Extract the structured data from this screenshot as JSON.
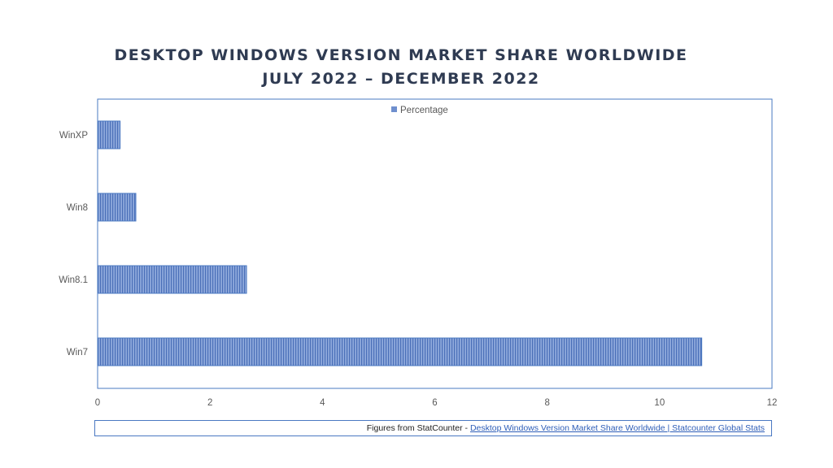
{
  "title": {
    "line1": "DESKTOP WINDOWS VERSION MARKET SHARE WORLDWIDE",
    "line2": "JULY 2022 – DECEMBER 2022"
  },
  "legend": {
    "label": "Percentage"
  },
  "source": {
    "prefix": "Figures from StatCounter - ",
    "link_text": "Desktop Windows Version Market Share Worldwide | Statcounter Global Stats"
  },
  "colors": {
    "bar": "#6f8fce",
    "bar_stripe": "#4a6fb8",
    "frame": "#4a78c2"
  },
  "chart_data": {
    "type": "bar",
    "orientation": "horizontal",
    "categories": [
      "WinXP",
      "Win8",
      "Win8.1",
      "Win7"
    ],
    "series": [
      {
        "name": "Percentage",
        "values": [
          0.4,
          0.68,
          2.65,
          10.75
        ]
      }
    ],
    "xlim": [
      0,
      12
    ],
    "xticks": [
      0,
      2,
      4,
      6,
      8,
      10,
      12
    ],
    "legend_position": "top",
    "grid": false
  }
}
